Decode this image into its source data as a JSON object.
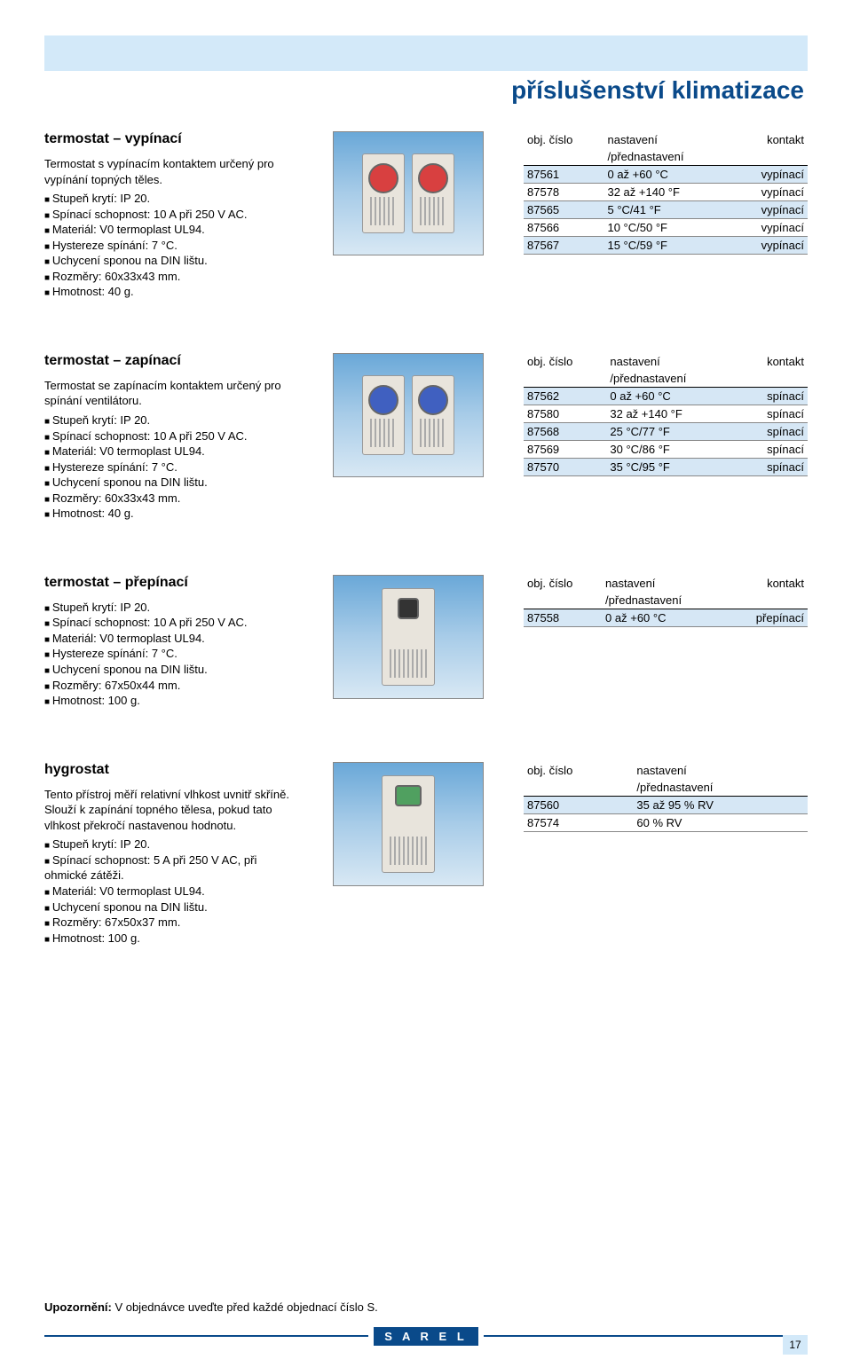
{
  "page_title": "příslušenství klimatizace",
  "footer_note_bold": "Upozornění:",
  "footer_note_text": " V objednávce uveďte před každé objednací číslo S.",
  "logo_text": "S A R E L",
  "page_number": "17",
  "table_headers": {
    "col1": "obj. číslo",
    "col2": "nastavení",
    "col2sub": "/přednastavení",
    "col3": "kontakt"
  },
  "sections": [
    {
      "heading": "termostat – vypínací",
      "intro": "Termostat s vypínacím kontaktem určený pro vypínání topných těles.",
      "specs": [
        "Stupeň krytí: IP 20.",
        "Spínací schopnost: 10 A při 250 V AC.",
        "Materiál: V0 termoplast UL94.",
        "Hystereze spínání: 7 °C.",
        "Uchycení sponou na DIN lištu.",
        "Rozměry: 60x33x43 mm.",
        "Hmotnost: 40 g."
      ],
      "img_style": "dual_red",
      "rows": [
        [
          "87561",
          "0 až +60 °C",
          "vypínací"
        ],
        [
          "87578",
          "32 až +140 °F",
          "vypínací"
        ],
        [
          "87565",
          "5 °C/41 °F",
          "vypínací"
        ],
        [
          "87566",
          "10 °C/50 °F",
          "vypínací"
        ],
        [
          "87567",
          "15 °C/59 °F",
          "vypínací"
        ]
      ],
      "has_col3": true
    },
    {
      "heading": "termostat – zapínací",
      "intro": "Termostat se zapínacím kontaktem určený pro spínání ventilátoru.",
      "specs": [
        "Stupeň krytí: IP 20.",
        "Spínací schopnost: 10 A při 250 V AC.",
        "Materiál: V0 termoplast UL94.",
        "Hystereze spínání: 7 °C.",
        "Uchycení sponou na DIN lištu.",
        "Rozměry: 60x33x43 mm.",
        "Hmotnost: 40 g."
      ],
      "img_style": "dual_blue",
      "rows": [
        [
          "87562",
          "0 až +60 °C",
          "spínací"
        ],
        [
          "87580",
          "32 až +140 °F",
          "spínací"
        ],
        [
          "87568",
          "25 °C/77 °F",
          "spínací"
        ],
        [
          "87569",
          "30 °C/86 °F",
          "spínací"
        ],
        [
          "87570",
          "35 °C/95 °F",
          "spínací"
        ]
      ],
      "has_col3": true
    },
    {
      "heading": "termostat – přepínací",
      "intro": "",
      "specs": [
        "Stupeň krytí: IP 20.",
        "Spínací schopnost: 10 A při 250 V AC.",
        "Materiál: V0 termoplast UL94.",
        "Hystereze spínání: 7 °C.",
        "Uchycení sponou na DIN lištu.",
        "Rozměry: 67x50x44 mm.",
        "Hmotnost: 100 g."
      ],
      "img_style": "single_black",
      "rows": [
        [
          "87558",
          "0 až +60 °C",
          "přepínací"
        ]
      ],
      "has_col3": true
    },
    {
      "heading": "hygrostat",
      "intro": "Tento přístroj měří relativní vlhkost uvnitř skříně. Slouží k zapínání topného tělesa, pokud tato vlhkost překročí nastavenou hodnotu.",
      "specs": [
        "Stupeň krytí: IP 20.",
        "Spínací schopnost: 5 A při 250 V AC, při ohmické zátěži.",
        "Materiál: V0 termoplast UL94.",
        "Uchycení sponou na DIN lištu.",
        "Rozměry: 67x50x37 mm.",
        "Hmotnost: 100 g."
      ],
      "img_style": "single_green",
      "rows": [
        [
          "87560",
          "35 až 95 % RV",
          ""
        ],
        [
          "87574",
          "60 % RV",
          ""
        ]
      ],
      "has_col3": false
    }
  ]
}
